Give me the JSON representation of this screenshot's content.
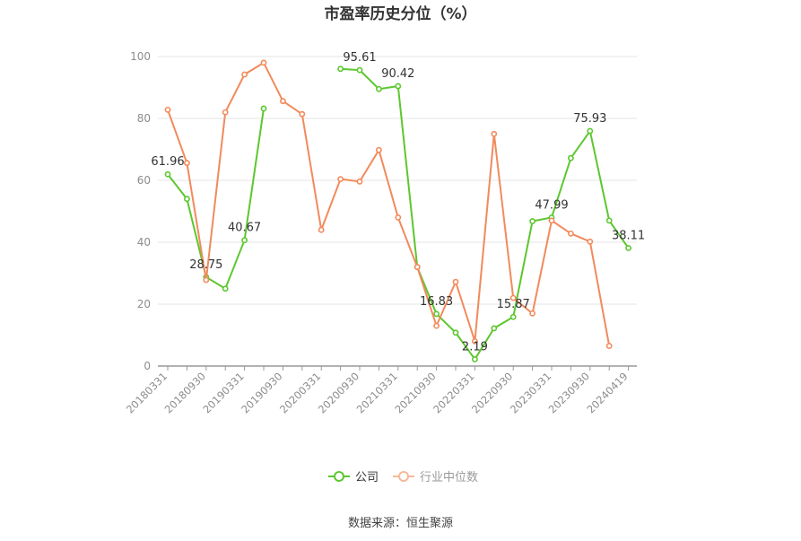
{
  "chart_data": {
    "type": "line",
    "title": "市盈率历史分位（%）",
    "source": "数据来源：恒生聚源",
    "ylim": [
      0,
      100
    ],
    "yticks": [
      0,
      20,
      40,
      60,
      80,
      100
    ],
    "grid": true,
    "legend_position": "bottom-center",
    "x": [
      "20180331",
      "20180630",
      "20180930",
      "20181231",
      "20190331",
      "20190630",
      "20190930",
      "20191231",
      "20200331",
      "20200630",
      "20200930",
      "20201231",
      "20210331",
      "20210630",
      "20210930",
      "20211231",
      "20220331",
      "20220630",
      "20220930",
      "20221231",
      "20230331",
      "20230630",
      "20230930",
      "20231231",
      "20240419"
    ],
    "xtick_labels": [
      "20180331",
      "20180930",
      "20190331",
      "20190930",
      "20200331",
      "20200930",
      "20210331",
      "20210930",
      "20220331",
      "20220930",
      "20230331",
      "20230930",
      "20240419"
    ],
    "series": [
      {
        "name": "公司",
        "color": "#5cc72e",
        "values": [
          61.96,
          54.0,
          28.75,
          25.0,
          40.67,
          83.2,
          null,
          null,
          null,
          96.0,
          95.61,
          89.5,
          90.42,
          32.0,
          16.83,
          10.8,
          2.19,
          12.2,
          15.87,
          46.8,
          47.99,
          67.2,
          75.93,
          47.0,
          38.11
        ],
        "labels": [
          {
            "i": 0,
            "text": "61.96"
          },
          {
            "i": 2,
            "text": "28.75"
          },
          {
            "i": 4,
            "text": "40.67"
          },
          {
            "i": 10,
            "text": "95.61"
          },
          {
            "i": 12,
            "text": "90.42"
          },
          {
            "i": 14,
            "text": "16.83"
          },
          {
            "i": 16,
            "text": "2.19"
          },
          {
            "i": 18,
            "text": "15.87"
          },
          {
            "i": 20,
            "text": "47.99"
          },
          {
            "i": 22,
            "text": "75.93"
          },
          {
            "i": 24,
            "text": "38.11"
          }
        ]
      },
      {
        "name": "行业中位数",
        "color": "#f28a5c",
        "values": [
          82.8,
          65.6,
          27.8,
          82.0,
          94.2,
          98.0,
          85.6,
          81.4,
          44.0,
          60.4,
          59.6,
          69.8,
          48.0,
          32.0,
          13.0,
          27.2,
          8.0,
          75.0,
          22.0,
          17.0,
          47.0,
          42.8,
          40.2,
          6.5,
          null
        ]
      }
    ]
  }
}
